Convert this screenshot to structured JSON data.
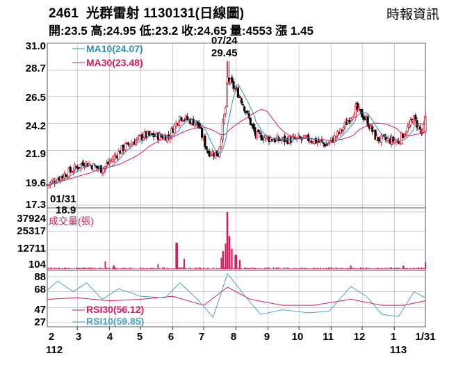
{
  "header": {
    "code": "2461",
    "name": "光群雷射",
    "date": "1130131",
    "period": "(日線圖)",
    "source": "時報資訊",
    "open_label": "開:",
    "open": "23.5",
    "high_label": "高:",
    "high": "24.95",
    "low_label": "低:",
    "low": "23.2",
    "close_label": "收:",
    "close": "24.65",
    "volume_label": "量:",
    "volume": "4553",
    "change_label": "漲",
    "change": "1.45"
  },
  "price_axis": {
    "ticks": [
      "31.0",
      "28.7",
      "26.5",
      "24.2",
      "21.9",
      "19.6",
      "17.3"
    ],
    "values": [
      31.0,
      28.7,
      26.5,
      24.2,
      21.9,
      19.6,
      17.3
    ]
  },
  "volume_axis": {
    "ticks": [
      "37924",
      "25317",
      "12711",
      "104"
    ],
    "values": [
      37924,
      25317,
      12711,
      104
    ]
  },
  "rsi_axis": {
    "ticks": [
      "88",
      "68",
      "47",
      "27"
    ],
    "values": [
      88,
      68,
      47,
      27
    ]
  },
  "x_axis": {
    "months": [
      "2",
      "3",
      "4",
      "5",
      "6",
      "7",
      "8",
      "9",
      "10",
      "11",
      "12",
      "1",
      "1/31"
    ],
    "years": [
      "112",
      "113"
    ]
  },
  "annotations": {
    "high_date": "07/24",
    "high_value": "29.45",
    "low_date": "01/31",
    "low_value": "18.9"
  },
  "legend": {
    "ma10": "MA10(24.07)",
    "ma30": "MA30(23.48)",
    "volume": "成交量(張)",
    "rsi30": "RSI30(56.12)",
    "rsi10": "RSI10(59.85)"
  },
  "colors": {
    "up": "#e8001c",
    "down": "#000000",
    "ma10": "#2f8fb8",
    "ma30": "#d81b60",
    "volume": "#d81b60",
    "rsi30": "#d81b60",
    "rsi10": "#4fa3c7",
    "grid": "#9e9e9e"
  },
  "chart_data": [
    {
      "type": "candlestick",
      "title": "2461 光群雷射 1130131(日線圖)",
      "ylim": [
        17.3,
        31.0
      ],
      "ma10_last": 24.07,
      "ma30_last": 23.48,
      "anchors": [
        {
          "date": "2023-01-31",
          "close": 19.0
        },
        {
          "date": "2023-02-15",
          "close": 19.8
        },
        {
          "date": "2023-03-08",
          "close": 20.9
        },
        {
          "date": "2023-03-25",
          "close": 20.3
        },
        {
          "date": "2023-04-15",
          "close": 22.2
        },
        {
          "date": "2023-05-05",
          "close": 23.2
        },
        {
          "date": "2023-05-28",
          "close": 23.1
        },
        {
          "date": "2023-06-08",
          "close": 24.8
        },
        {
          "date": "2023-06-25",
          "close": 24.2
        },
        {
          "date": "2023-07-05",
          "close": 21.8
        },
        {
          "date": "2023-07-15",
          "close": 21.6
        },
        {
          "date": "2023-07-22",
          "close": 25.5
        },
        {
          "date": "2023-07-24",
          "close": 28.0,
          "high": 29.45
        },
        {
          "date": "2023-08-05",
          "close": 26.5
        },
        {
          "date": "2023-08-20",
          "close": 23.2
        },
        {
          "date": "2023-09-10",
          "close": 22.8
        },
        {
          "date": "2023-10-10",
          "close": 22.9
        },
        {
          "date": "2023-10-28",
          "close": 22.4
        },
        {
          "date": "2023-11-10",
          "close": 23.5
        },
        {
          "date": "2023-11-25",
          "close": 25.5
        },
        {
          "date": "2023-12-05",
          "close": 24.5
        },
        {
          "date": "2023-12-15",
          "close": 22.9
        },
        {
          "date": "2024-01-05",
          "close": 22.7
        },
        {
          "date": "2024-01-20",
          "close": 24.6
        },
        {
          "date": "2024-01-28",
          "close": 23.3
        },
        {
          "date": "2024-01-31",
          "close": 24.65,
          "open": 23.5,
          "high": 24.95,
          "low": 23.2
        }
      ]
    },
    {
      "type": "bar",
      "title": "成交量(張)",
      "ylim": [
        104,
        37924
      ],
      "spikes": [
        {
          "date": "2023-03-28",
          "value": 5200
        },
        {
          "date": "2023-04-05",
          "value": 2600
        },
        {
          "date": "2023-05-18",
          "value": 3400
        },
        {
          "date": "2023-06-05",
          "value": 17500
        },
        {
          "date": "2023-06-12",
          "value": 6800
        },
        {
          "date": "2023-07-18",
          "value": 7500
        },
        {
          "date": "2023-07-20",
          "value": 12000
        },
        {
          "date": "2023-07-22",
          "value": 17000
        },
        {
          "date": "2023-07-24",
          "value": 37924
        },
        {
          "date": "2023-07-26",
          "value": 22000
        },
        {
          "date": "2023-07-28",
          "value": 13500
        },
        {
          "date": "2023-08-01",
          "value": 9500
        },
        {
          "date": "2023-08-05",
          "value": 6000
        },
        {
          "date": "2023-11-20",
          "value": 2500
        },
        {
          "date": "2024-01-10",
          "value": 2400
        },
        {
          "date": "2024-01-31",
          "value": 4553
        }
      ]
    },
    {
      "type": "line",
      "title": "RSI",
      "ylim": [
        27,
        88
      ],
      "series": [
        {
          "name": "RSI30",
          "last": 56.12,
          "points": [
            [
              "2023-01-31",
              58
            ],
            [
              "2023-03-01",
              60
            ],
            [
              "2023-04-01",
              56
            ],
            [
              "2023-05-01",
              58
            ],
            [
              "2023-06-01",
              62
            ],
            [
              "2023-07-01",
              50
            ],
            [
              "2023-07-24",
              74
            ],
            [
              "2023-08-15",
              58
            ],
            [
              "2023-09-15",
              50
            ],
            [
              "2023-10-15",
              50
            ],
            [
              "2023-11-20",
              58
            ],
            [
              "2023-12-20",
              50
            ],
            [
              "2024-01-10",
              50
            ],
            [
              "2024-01-31",
              56.12
            ]
          ]
        },
        {
          "name": "RSI10",
          "last": 59.85,
          "points": [
            [
              "2023-01-31",
              70
            ],
            [
              "2023-02-10",
              82
            ],
            [
              "2023-02-25",
              68
            ],
            [
              "2023-03-10",
              80
            ],
            [
              "2023-03-25",
              58
            ],
            [
              "2023-04-10",
              72
            ],
            [
              "2023-05-01",
              62
            ],
            [
              "2023-05-25",
              60
            ],
            [
              "2023-06-08",
              80
            ],
            [
              "2023-06-25",
              58
            ],
            [
              "2023-07-10",
              34
            ],
            [
              "2023-07-24",
              92
            ],
            [
              "2023-08-10",
              62
            ],
            [
              "2023-08-25",
              38
            ],
            [
              "2023-09-15",
              44
            ],
            [
              "2023-10-10",
              40
            ],
            [
              "2023-10-30",
              42
            ],
            [
              "2023-11-20",
              75
            ],
            [
              "2023-12-05",
              62
            ],
            [
              "2023-12-20",
              38
            ],
            [
              "2024-01-05",
              35
            ],
            [
              "2024-01-20",
              68
            ],
            [
              "2024-01-31",
              59.85
            ]
          ]
        }
      ]
    }
  ]
}
